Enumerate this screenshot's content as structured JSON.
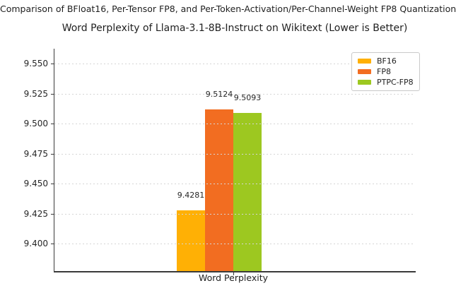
{
  "figure": {
    "suptitle": "Comparison of BFloat16, Per-Tensor FP8, and Per-Token-Activation/Per-Channel-Weight FP8 Quantization"
  },
  "chart_data": {
    "type": "bar",
    "title": "Word Perplexity of Llama-3.1-8B-Instruct on Wikitext (Lower is Better)",
    "categories": [
      "Word Perplexity"
    ],
    "series": [
      {
        "name": "BF16",
        "values": [
          9.4281
        ],
        "data_label": "9.4281",
        "color": "#FFB005"
      },
      {
        "name": "FP8",
        "values": [
          9.5124
        ],
        "data_label": "9.5124",
        "color": "#F26D21"
      },
      {
        "name": "PTPC-FP8",
        "values": [
          9.5093
        ],
        "data_label": "9.5093",
        "color": "#9DC820"
      }
    ],
    "xlabel": "",
    "ylabel": "",
    "ylim": [
      9.3776,
      9.5629
    ],
    "yticks": [
      9.4,
      9.425,
      9.45,
      9.475,
      9.5,
      9.525,
      9.55
    ],
    "ytick_labels": [
      "9.400",
      "9.425",
      "9.450",
      "9.475",
      "9.500",
      "9.525",
      "9.550"
    ],
    "grid": "horizontal-dotted",
    "legend_position": "upper-right",
    "colors": {
      "text": "#262626",
      "spine": "#3a3a3a",
      "gridline": "#d6d6d6",
      "background": "#ffffff"
    }
  }
}
